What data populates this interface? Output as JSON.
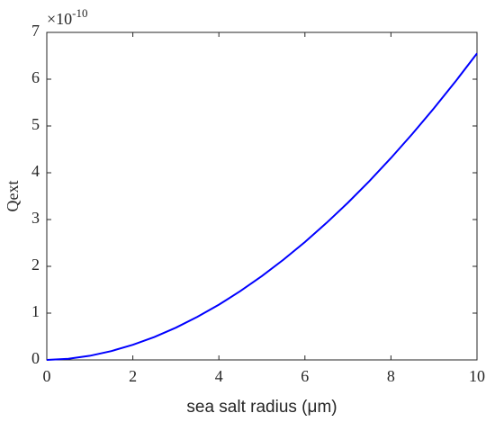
{
  "chart_data": {
    "type": "line",
    "x_label": "sea salt radius (μm)",
    "y_label": "Qext",
    "y_multiplier": {
      "base": "×10",
      "exponent": "-10"
    },
    "x": [
      0,
      0.5,
      1,
      1.5,
      2,
      2.5,
      3,
      3.5,
      4,
      4.5,
      5,
      5.5,
      6,
      6.5,
      7,
      7.5,
      8,
      8.5,
      9,
      9.5,
      10
    ],
    "series": [
      {
        "color": "#0000ff",
        "values": [
          0,
          0.024,
          0.088,
          0.189,
          0.323,
          0.49,
          0.689,
          0.92,
          1.18,
          1.472,
          1.792,
          2.142,
          2.52,
          2.927,
          3.361,
          3.824,
          4.315,
          4.834,
          5.379,
          5.951,
          6.55
        ]
      }
    ],
    "xlim": [
      0,
      10
    ],
    "xticks": [
      0,
      2,
      4,
      6,
      8,
      10
    ],
    "ylim": [
      0,
      7
    ],
    "yticks": [
      0,
      1,
      2,
      3,
      4,
      5,
      6,
      7
    ],
    "grid": false
  }
}
